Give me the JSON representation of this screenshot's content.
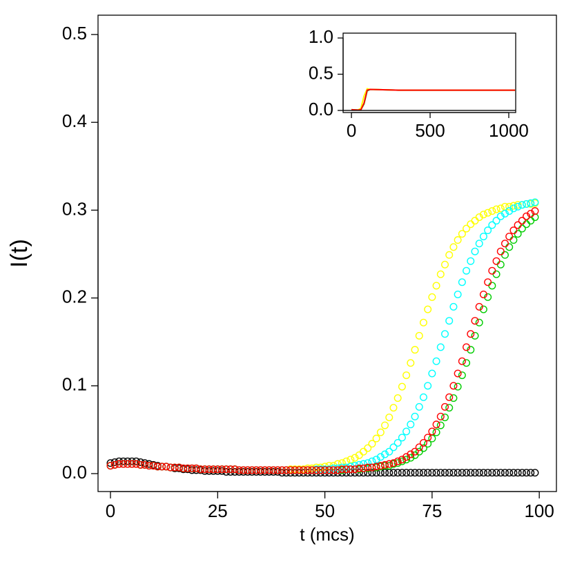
{
  "chart_data": [
    {
      "type": "scatter",
      "xlabel": "t (mcs)",
      "ylabel": "I(t)",
      "xlim": [
        -2.9,
        104
      ],
      "ylim": [
        -0.0204,
        0.522
      ],
      "xticks": [
        0,
        25,
        50,
        75,
        100
      ],
      "yticks": [
        {
          "value": 0,
          "label": "0.0"
        },
        0.1,
        0.2,
        0.3,
        0.4,
        0.5
      ],
      "x": [
        0,
        1,
        2,
        3,
        4,
        5,
        6,
        7,
        8,
        9,
        10,
        11,
        12,
        13,
        14,
        15,
        16,
        17,
        18,
        19,
        20,
        21,
        22,
        23,
        24,
        25,
        26,
        27,
        28,
        29,
        30,
        31,
        32,
        33,
        34,
        35,
        36,
        37,
        38,
        39,
        40,
        41,
        42,
        43,
        44,
        45,
        46,
        47,
        48,
        49,
        50,
        51,
        52,
        53,
        54,
        55,
        56,
        57,
        58,
        59,
        60,
        61,
        62,
        63,
        64,
        65,
        66,
        67,
        68,
        69,
        70,
        71,
        72,
        73,
        74,
        75,
        76,
        77,
        78,
        79,
        80,
        81,
        82,
        83,
        84,
        85,
        86,
        87,
        88,
        89,
        90,
        91,
        92,
        93,
        94,
        95,
        96,
        97,
        98,
        99
      ],
      "series": [
        {
          "color": "#000000",
          "values": [
            0.012,
            0.013,
            0.014,
            0.014,
            0.014,
            0.014,
            0.014,
            0.013,
            0.012,
            0.011,
            0.01,
            0.009,
            0.008,
            0.008,
            0.007,
            0.006,
            0.006,
            0.005,
            0.005,
            0.004,
            0.004,
            0.004,
            0.003,
            0.003,
            0.003,
            0.003,
            0.003,
            0.002,
            0.002,
            0.002,
            0.002,
            0.002,
            0.002,
            0.002,
            0.002,
            0.002,
            0.002,
            0.002,
            0.002,
            0.002,
            0.001,
            0.001,
            0.001,
            0.001,
            0.001,
            0.001,
            0.001,
            0.001,
            0.001,
            0.001,
            0.001,
            0.001,
            0.001,
            0.001,
            0.001,
            0.001,
            0.001,
            0.001,
            0.001,
            0.001,
            0.001,
            0.001,
            0.001,
            0.001,
            0.001,
            0.001,
            0.001,
            0.001,
            0.001,
            0.001,
            0.001,
            0.001,
            0.001,
            0.001,
            0.001,
            0.001,
            0.001,
            0.001,
            0.001,
            0.001,
            0.001,
            0.001,
            0.001,
            0.001,
            0.001,
            0.001,
            0.001,
            0.001,
            0.001,
            0.001,
            0.001,
            0.001,
            0.001,
            0.001,
            0.001,
            0.001,
            0.001,
            0.001,
            0.001,
            0.001
          ]
        },
        {
          "color": "#ffff00",
          "values": [
            0.009,
            0.01,
            0.011,
            0.011,
            0.011,
            0.011,
            0.011,
            0.01,
            0.01,
            0.009,
            0.009,
            0.008,
            0.008,
            0.008,
            0.007,
            0.007,
            0.007,
            0.006,
            0.006,
            0.006,
            0.006,
            0.005,
            0.005,
            0.005,
            0.005,
            0.005,
            0.005,
            0.005,
            0.005,
            0.005,
            0.004,
            0.004,
            0.004,
            0.004,
            0.004,
            0.004,
            0.004,
            0.004,
            0.004,
            0.004,
            0.004,
            0.004,
            0.005,
            0.005,
            0.005,
            0.005,
            0.006,
            0.006,
            0.007,
            0.007,
            0.008,
            0.009,
            0.009,
            0.011,
            0.012,
            0.014,
            0.016,
            0.018,
            0.021,
            0.025,
            0.029,
            0.034,
            0.04,
            0.047,
            0.055,
            0.064,
            0.075,
            0.086,
            0.099,
            0.112,
            0.126,
            0.141,
            0.157,
            0.172,
            0.187,
            0.201,
            0.214,
            0.227,
            0.238,
            0.249,
            0.258,
            0.266,
            0.273,
            0.279,
            0.284,
            0.288,
            0.292,
            0.295,
            0.297,
            0.299,
            0.301,
            0.302,
            0.304,
            0.304,
            0.305,
            0.306,
            0.306,
            0.307,
            0.307,
            0.308
          ]
        },
        {
          "color": "#00ffff",
          "values": [
            0.009,
            0.01,
            0.011,
            0.011,
            0.011,
            0.011,
            0.011,
            0.01,
            0.01,
            0.009,
            0.009,
            0.008,
            0.008,
            0.008,
            0.007,
            0.007,
            0.007,
            0.006,
            0.006,
            0.006,
            0.006,
            0.005,
            0.005,
            0.005,
            0.005,
            0.005,
            0.005,
            0.005,
            0.005,
            0.005,
            0.004,
            0.004,
            0.004,
            0.004,
            0.004,
            0.004,
            0.004,
            0.004,
            0.004,
            0.004,
            0.004,
            0.004,
            0.004,
            0.004,
            0.004,
            0.004,
            0.004,
            0.004,
            0.005,
            0.005,
            0.005,
            0.005,
            0.006,
            0.006,
            0.007,
            0.007,
            0.008,
            0.009,
            0.01,
            0.011,
            0.012,
            0.014,
            0.016,
            0.019,
            0.022,
            0.025,
            0.03,
            0.035,
            0.041,
            0.048,
            0.056,
            0.065,
            0.076,
            0.087,
            0.1,
            0.114,
            0.128,
            0.144,
            0.159,
            0.174,
            0.19,
            0.204,
            0.218,
            0.231,
            0.242,
            0.253,
            0.262,
            0.27,
            0.277,
            0.283,
            0.288,
            0.293,
            0.296,
            0.299,
            0.302,
            0.304,
            0.306,
            0.307,
            0.308,
            0.309
          ]
        },
        {
          "color": "#00cd00",
          "values": [
            0.009,
            0.01,
            0.011,
            0.011,
            0.011,
            0.011,
            0.011,
            0.01,
            0.01,
            0.009,
            0.009,
            0.008,
            0.008,
            0.008,
            0.007,
            0.007,
            0.007,
            0.006,
            0.006,
            0.006,
            0.006,
            0.005,
            0.005,
            0.005,
            0.005,
            0.005,
            0.005,
            0.005,
            0.005,
            0.005,
            0.004,
            0.004,
            0.004,
            0.004,
            0.004,
            0.004,
            0.004,
            0.004,
            0.004,
            0.004,
            0.004,
            0.004,
            0.004,
            0.004,
            0.004,
            0.004,
            0.004,
            0.004,
            0.004,
            0.004,
            0.004,
            0.004,
            0.004,
            0.004,
            0.004,
            0.005,
            0.005,
            0.005,
            0.005,
            0.006,
            0.006,
            0.007,
            0.007,
            0.008,
            0.009,
            0.009,
            0.011,
            0.012,
            0.014,
            0.016,
            0.018,
            0.021,
            0.025,
            0.029,
            0.034,
            0.04,
            0.047,
            0.055,
            0.064,
            0.075,
            0.086,
            0.099,
            0.112,
            0.126,
            0.141,
            0.157,
            0.172,
            0.187,
            0.201,
            0.214,
            0.227,
            0.238,
            0.249,
            0.258,
            0.266,
            0.273,
            0.279,
            0.284,
            0.288,
            0.292
          ]
        },
        {
          "color": "#ff0000",
          "values": [
            0.009,
            0.01,
            0.011,
            0.011,
            0.011,
            0.011,
            0.011,
            0.01,
            0.01,
            0.009,
            0.009,
            0.008,
            0.008,
            0.008,
            0.007,
            0.007,
            0.007,
            0.006,
            0.006,
            0.006,
            0.006,
            0.005,
            0.005,
            0.005,
            0.005,
            0.005,
            0.005,
            0.005,
            0.005,
            0.005,
            0.004,
            0.004,
            0.004,
            0.004,
            0.004,
            0.004,
            0.004,
            0.004,
            0.004,
            0.004,
            0.004,
            0.004,
            0.004,
            0.004,
            0.004,
            0.004,
            0.004,
            0.004,
            0.004,
            0.004,
            0.004,
            0.004,
            0.004,
            0.004,
            0.005,
            0.005,
            0.005,
            0.005,
            0.006,
            0.006,
            0.007,
            0.007,
            0.008,
            0.009,
            0.01,
            0.011,
            0.012,
            0.014,
            0.016,
            0.019,
            0.022,
            0.025,
            0.03,
            0.035,
            0.041,
            0.048,
            0.056,
            0.065,
            0.076,
            0.087,
            0.1,
            0.114,
            0.128,
            0.144,
            0.159,
            0.174,
            0.19,
            0.204,
            0.218,
            0.231,
            0.242,
            0.253,
            0.262,
            0.27,
            0.277,
            0.283,
            0.288,
            0.293,
            0.296,
            0.299
          ]
        }
      ]
    },
    {
      "type": "line",
      "xlim": [
        -53,
        1044
      ],
      "ylim": [
        -0.029,
        1.067
      ],
      "xticks": [
        0,
        500,
        1000
      ],
      "yticks": [
        {
          "value": 0,
          "label": "0.0"
        },
        0.5,
        {
          "value": 1,
          "label": "1.0"
        }
      ],
      "x": [
        0,
        40,
        60,
        80,
        100,
        120,
        300,
        500,
        700,
        900,
        1040
      ],
      "series": [
        {
          "color": "#00cd00",
          "values": [
            0.01,
            0.005,
            0.01,
            0.09,
            0.27,
            0.29,
            0.28,
            0.28,
            0.28,
            0.28,
            0.28
          ]
        },
        {
          "color": "#ffff00",
          "values": [
            0.01,
            0.005,
            0.03,
            0.2,
            0.3,
            0.29,
            0.28,
            0.28,
            0.28,
            0.28,
            0.28
          ]
        },
        {
          "color": "#ff0000",
          "values": [
            0.01,
            0.005,
            0.01,
            0.1,
            0.28,
            0.29,
            0.28,
            0.28,
            0.28,
            0.28,
            0.28
          ]
        }
      ]
    }
  ]
}
